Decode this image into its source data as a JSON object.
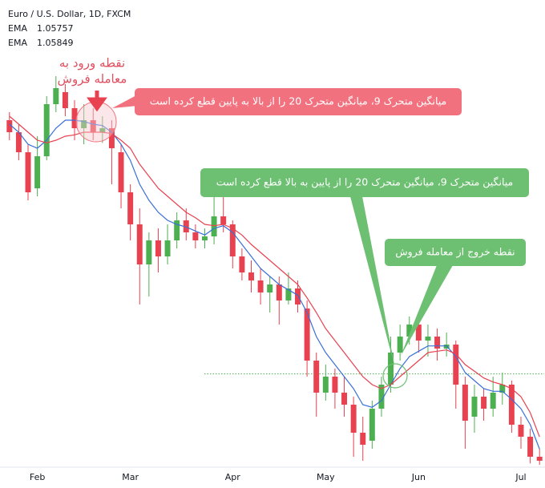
{
  "chart_data": {
    "type": "candlestick",
    "title": "Euro / U.S. Dollar, 1D, FXCM",
    "categories": [
      null,
      null,
      null,
      "Feb",
      null,
      null,
      null,
      null,
      null,
      null,
      null,
      null,
      null,
      "Mar",
      null,
      null,
      null,
      null,
      null,
      null,
      null,
      null,
      null,
      null,
      "Apr",
      null,
      null,
      null,
      null,
      null,
      null,
      null,
      null,
      null,
      "May",
      null,
      null,
      null,
      null,
      null,
      null,
      null,
      null,
      null,
      "Jun",
      null,
      null,
      null,
      null,
      null,
      null,
      null,
      null,
      null,
      null,
      "Jul",
      null,
      null
    ],
    "open": [
      1.0822,
      1.0813,
      1.0798,
      1.0771,
      1.0795,
      1.0834,
      1.0843,
      1.0831,
      1.0816,
      1.0822,
      1.0813,
      1.0816,
      1.0798,
      1.0768,
      1.0744,
      1.0714,
      1.0732,
      1.072,
      1.0732,
      1.0747,
      1.0738,
      1.0732,
      1.0735,
      1.075,
      1.0744,
      1.072,
      1.0708,
      1.0702,
      1.0693,
      1.0699,
      1.0687,
      1.0696,
      1.0681,
      1.0642,
      1.0618,
      1.063,
      1.0618,
      1.0609,
      1.0588,
      1.0582,
      1.0606,
      1.0624,
      1.0648,
      1.066,
      1.0669,
      1.0657,
      1.066,
      1.0651,
      1.0654,
      1.0624,
      1.06,
      1.0615,
      1.0606,
      1.0618,
      1.0624,
      1.0594,
      1.0585,
      1.057
    ],
    "high": [
      1.0828,
      1.0819,
      1.0804,
      1.081,
      1.084,
      1.0855,
      1.0849,
      1.0837,
      1.0834,
      1.0831,
      1.0825,
      1.0822,
      1.0804,
      1.0774,
      1.0756,
      1.0738,
      1.0741,
      1.0744,
      1.0753,
      1.0756,
      1.0744,
      1.0741,
      1.0768,
      1.0774,
      1.0747,
      1.0726,
      1.0717,
      1.0711,
      1.0705,
      1.0705,
      1.0708,
      1.0702,
      1.0687,
      1.0648,
      1.0639,
      1.0636,
      1.063,
      1.0615,
      1.06,
      1.0612,
      1.063,
      1.066,
      1.0669,
      1.0675,
      1.0672,
      1.0669,
      1.0666,
      1.0663,
      1.0657,
      1.063,
      1.0624,
      1.0621,
      1.063,
      1.0633,
      1.0627,
      1.06,
      1.0591,
      1.0576
    ],
    "low": [
      1.0807,
      1.0792,
      1.0762,
      1.0765,
      1.0792,
      1.0828,
      1.0825,
      1.0807,
      1.0804,
      1.0807,
      1.0805,
      1.0774,
      1.0756,
      1.0732,
      1.0684,
      1.069,
      1.0708,
      1.0714,
      1.0726,
      1.0732,
      1.0726,
      1.0726,
      1.0729,
      1.0738,
      1.0711,
      1.0702,
      1.0693,
      1.0684,
      1.0678,
      1.0669,
      1.0684,
      1.0678,
      1.063,
      1.06,
      1.0612,
      1.0606,
      1.06,
      1.057,
      1.0567,
      1.0576,
      1.06,
      1.0618,
      1.0642,
      1.0654,
      1.0648,
      1.0645,
      1.0642,
      1.0645,
      1.0606,
      1.0576,
      1.0588,
      1.0597,
      1.06,
      1.0609,
      1.0588,
      1.0576,
      1.0565,
      1.0564
    ],
    "close": [
      1.0813,
      1.0798,
      1.0768,
      1.0795,
      1.0834,
      1.0846,
      1.0831,
      1.0816,
      1.0822,
      1.0813,
      1.0816,
      1.0801,
      1.0768,
      1.0744,
      1.0714,
      1.0732,
      1.072,
      1.0732,
      1.0747,
      1.0738,
      1.0732,
      1.0735,
      1.075,
      1.0744,
      1.072,
      1.0708,
      1.0702,
      1.0693,
      1.0699,
      1.0687,
      1.0696,
      1.0684,
      1.0642,
      1.0618,
      1.063,
      1.0618,
      1.0609,
      1.0588,
      1.0579,
      1.0606,
      1.0624,
      1.0648,
      1.066,
      1.0669,
      1.0657,
      1.066,
      1.0651,
      1.0654,
      1.0624,
      1.0597,
      1.0615,
      1.0606,
      1.0618,
      1.0624,
      1.0594,
      1.0585,
      1.057,
      1.0567
    ],
    "up_color": "#4caf50",
    "down_color": "#e8414f",
    "series": [
      {
        "name": "EMA",
        "legend_value": "1.05757",
        "color": "#3a6fd8",
        "values": [
          1.0819,
          1.0813,
          1.0804,
          1.0801,
          1.0807,
          1.0816,
          1.0822,
          1.0822,
          1.0821,
          1.0819,
          1.0818,
          1.0813,
          1.0804,
          1.0792,
          1.0774,
          1.0762,
          1.0753,
          1.0747,
          1.0744,
          1.0742,
          1.0739,
          1.0736,
          1.0741,
          1.0743,
          1.0738,
          1.0729,
          1.072,
          1.0711,
          1.0705,
          1.0699,
          1.0695,
          1.0691,
          1.0678,
          1.066,
          1.0648,
          1.0639,
          1.063,
          1.0621,
          1.0609,
          1.0607,
          1.0612,
          1.0624,
          1.0636,
          1.0645,
          1.0649,
          1.0653,
          1.0653,
          1.0653,
          1.0645,
          1.0633,
          1.0627,
          1.0621,
          1.0619,
          1.0619,
          1.0613,
          1.0606,
          1.0594,
          1.05757
        ]
      },
      {
        "name": "EMA",
        "legend_value": "1.05849",
        "color": "#e8414f",
        "values": [
          1.0825,
          1.0819,
          1.0813,
          1.0807,
          1.0805,
          1.0807,
          1.081,
          1.0811,
          1.0813,
          1.0813,
          1.0813,
          1.0812,
          1.0807,
          1.0801,
          1.0789,
          1.078,
          1.0771,
          1.0765,
          1.0759,
          1.0753,
          1.0749,
          1.0744,
          1.0743,
          1.0744,
          1.0741,
          1.0736,
          1.0729,
          1.0723,
          1.0717,
          1.0711,
          1.0705,
          1.0699,
          1.0689,
          1.0678,
          1.0666,
          1.0657,
          1.0648,
          1.0639,
          1.063,
          1.0624,
          1.0621,
          1.0624,
          1.063,
          1.0636,
          1.0642,
          1.0648,
          1.0649,
          1.065,
          1.0647,
          1.0639,
          1.0634,
          1.0629,
          1.0626,
          1.0624,
          1.0621,
          1.0615,
          1.0603,
          1.05849
        ]
      }
    ],
    "hline": 1.0632,
    "hline_color": "#4caf50",
    "ylim": [
      1.0564,
      1.0912
    ],
    "annotations": {
      "entry_label": [
        "نقطه ورود به",
        "معامله فروش"
      ],
      "entry_note": "میانگین متحرک 9، میانگین متحرک 20 را از بالا به پایین قطع کرده است",
      "cross_up_note": "میانگین متحرک 9، میانگین متحرک 20 را از پایین به بالا قطع کرده است",
      "exit_note": "نقطه خروج از معامله فروش"
    }
  }
}
